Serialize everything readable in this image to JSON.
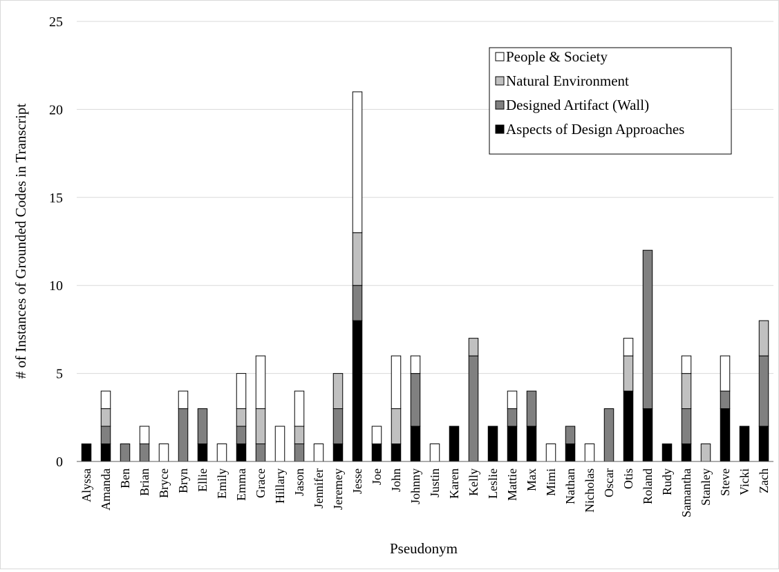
{
  "chart_data": {
    "type": "bar",
    "stacked": true,
    "xlabel": "Pseudonym",
    "ylabel": "# of Instances of Grounded Codes in Transcript",
    "ylim": [
      0,
      25
    ],
    "yticks": [
      0,
      5,
      10,
      15,
      20,
      25
    ],
    "grid": "horizontal",
    "legend_position": "top-right",
    "categories": [
      "Alyssa",
      "Amanda",
      "Ben",
      "Brian",
      "Bryce",
      "Bryn",
      "Ellie",
      "Emily",
      "Emma",
      "Grace",
      "Hillary",
      "Jason",
      "Jennifer",
      "Jeremey",
      "Jesse",
      "Joe",
      "John",
      "Johnny",
      "Justin",
      "Karen",
      "Kelly",
      "Leslie",
      "Mattie",
      "Max",
      "Mimi",
      "Nathan",
      "Nicholas",
      "Oscar",
      "Otis",
      "Roland",
      "Rudy",
      "Samantha",
      "Stanley",
      "Steve",
      "Vicki",
      "Zach"
    ],
    "series": [
      {
        "name": "Aspects of Design Approaches",
        "color": "#000000",
        "values": [
          1,
          1,
          0,
          0,
          0,
          0,
          1,
          0,
          1,
          0,
          0,
          0,
          0,
          1,
          8,
          1,
          1,
          2,
          0,
          2,
          0,
          2,
          2,
          2,
          0,
          1,
          0,
          0,
          4,
          3,
          1,
          1,
          0,
          3,
          2,
          2
        ]
      },
      {
        "name": "Designed Artifact (Wall)",
        "color": "#808080",
        "values": [
          0,
          1,
          1,
          1,
          0,
          3,
          2,
          0,
          1,
          1,
          0,
          1,
          0,
          2,
          2,
          0,
          0,
          3,
          0,
          0,
          6,
          0,
          1,
          2,
          0,
          1,
          0,
          3,
          0,
          9,
          0,
          2,
          0,
          1,
          0,
          4
        ]
      },
      {
        "name": "Natural Environment",
        "color": "#c0c0c0",
        "values": [
          0,
          1,
          0,
          0,
          0,
          0,
          0,
          0,
          1,
          2,
          0,
          1,
          0,
          2,
          3,
          0,
          2,
          0,
          0,
          0,
          1,
          0,
          0,
          0,
          0,
          0,
          0,
          0,
          2,
          0,
          0,
          2,
          1,
          0,
          0,
          2
        ]
      },
      {
        "name": "People & Society",
        "color": "#ffffff",
        "values": [
          0,
          1,
          0,
          1,
          1,
          1,
          0,
          1,
          2,
          3,
          2,
          2,
          1,
          0,
          8,
          1,
          3,
          1,
          1,
          0,
          0,
          0,
          1,
          0,
          1,
          0,
          1,
          0,
          1,
          0,
          0,
          1,
          0,
          2,
          0,
          0
        ]
      }
    ]
  }
}
